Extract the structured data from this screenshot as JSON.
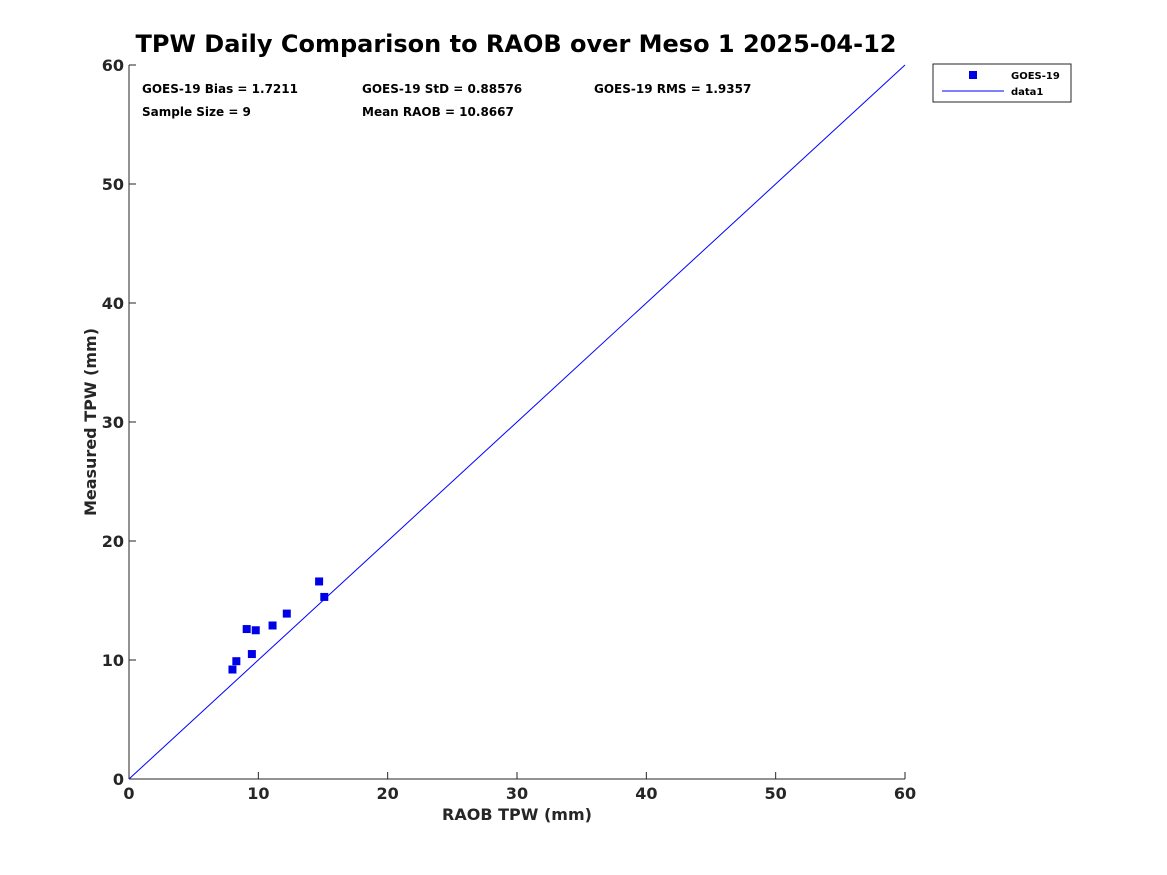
{
  "chart_data": {
    "type": "scatter",
    "title": "TPW Daily Comparison to RAOB over Meso 1 2025-04-12",
    "xlabel": "RAOB TPW (mm)",
    "ylabel": "Measured TPW (mm)",
    "xlim": [
      0,
      60
    ],
    "ylim": [
      0,
      60
    ],
    "xticks": [
      0,
      10,
      20,
      30,
      40,
      50,
      60
    ],
    "yticks": [
      0,
      10,
      20,
      30,
      40,
      50,
      60
    ],
    "grid": false,
    "legend_position": "outside-top-right",
    "series": [
      {
        "name": "GOES-19",
        "kind": "scatter",
        "marker": "square",
        "color": "#0000e6",
        "x": [
          8.0,
          8.3,
          9.1,
          9.5,
          9.8,
          11.1,
          12.2,
          14.7,
          15.1
        ],
        "y": [
          9.2,
          9.9,
          12.6,
          10.5,
          12.5,
          12.9,
          13.9,
          16.6,
          15.3
        ]
      },
      {
        "name": "data1",
        "kind": "line",
        "color": "#0000ff",
        "x": [
          0,
          60
        ],
        "y": [
          0,
          60
        ]
      }
    ],
    "annotations": {
      "bias": "GOES-19 Bias = 1.7211",
      "std": "GOES-19 StD = 0.88576",
      "rms": "GOES-19 RMS = 1.9357",
      "sample_size": "Sample Size = 9",
      "mean_raob": "Mean RAOB = 10.8667"
    }
  }
}
